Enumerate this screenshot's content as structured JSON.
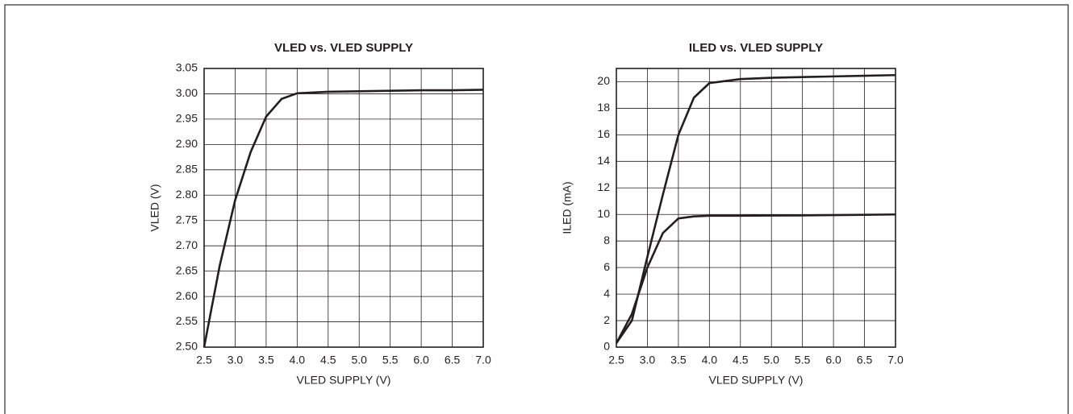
{
  "chart_data": [
    {
      "type": "line",
      "title": "VLED vs. VLED SUPPLY",
      "x_label": "VLED SUPPLY (V)",
      "y_label": "VLED (V)",
      "x": [
        2.5,
        2.75,
        3,
        3.25,
        3.5,
        3.75,
        4,
        4.5,
        5,
        5.5,
        6,
        6.5,
        7
      ],
      "series": [
        {
          "color": "#231f20",
          "values": [
            2.5,
            2.66,
            2.79,
            2.885,
            2.955,
            2.99,
            3.001,
            3.004,
            3.005,
            3.006,
            3.007,
            3.007,
            3.008
          ]
        }
      ],
      "xlim": [
        2.5,
        7
      ],
      "ylim": [
        2.5,
        3.05
      ],
      "xticks": [
        2.5,
        {
          "value": 3,
          "label": "3.0"
        },
        3.5,
        {
          "value": 4,
          "label": "4.0"
        },
        4.5,
        {
          "value": 5,
          "label": "5.0"
        },
        5.5,
        {
          "value": 6,
          "label": "6.0"
        },
        6.5,
        {
          "value": 7,
          "label": "7.0"
        }
      ],
      "yticks": [
        {
          "value": 2.5,
          "label": "2.50"
        },
        2.55,
        {
          "value": 2.6,
          "label": "2.60"
        },
        2.65,
        {
          "value": 2.7,
          "label": "2.70"
        },
        2.75,
        {
          "value": 2.8,
          "label": "2.80"
        },
        2.85,
        {
          "value": 2.9,
          "label": "2.90"
        },
        2.95,
        {
          "value": 3,
          "label": "3.00"
        },
        3.05
      ],
      "grid": true
    },
    {
      "type": "line",
      "title": "ILED vs. VLED SUPPLY",
      "x_label": "VLED SUPPLY (V)",
      "y_label": "ILED (mA)",
      "x": [
        2.5,
        2.75,
        3,
        3.25,
        3.5,
        3.75,
        4,
        4.5,
        5,
        5.5,
        6,
        6.5,
        7
      ],
      "series": [
        {
          "color": "#231f20",
          "values": [
            0.3,
            2,
            6.8,
            11.5,
            16,
            18.8,
            19.9,
            20.2,
            20.3,
            20.35,
            20.4,
            20.45,
            20.5
          ]
        },
        {
          "color": "#231f20",
          "values": [
            0.3,
            2.5,
            6,
            8.6,
            9.7,
            9.85,
            9.9,
            9.9,
            9.92,
            9.93,
            9.95,
            9.97,
            10
          ]
        }
      ],
      "xlim": [
        2.5,
        7
      ],
      "ylim": [
        0,
        21
      ],
      "xticks": [
        2.5,
        {
          "value": 3,
          "label": "3.0"
        },
        3.5,
        {
          "value": 4,
          "label": "4.0"
        },
        4.5,
        {
          "value": 5,
          "label": "5.0"
        },
        5.5,
        {
          "value": 6,
          "label": "6.0"
        },
        6.5,
        {
          "value": 7,
          "label": "7.0"
        }
      ],
      "yticks": [
        0,
        2,
        4,
        6,
        8,
        10,
        12,
        14,
        16,
        18,
        20
      ],
      "grid": true
    }
  ]
}
